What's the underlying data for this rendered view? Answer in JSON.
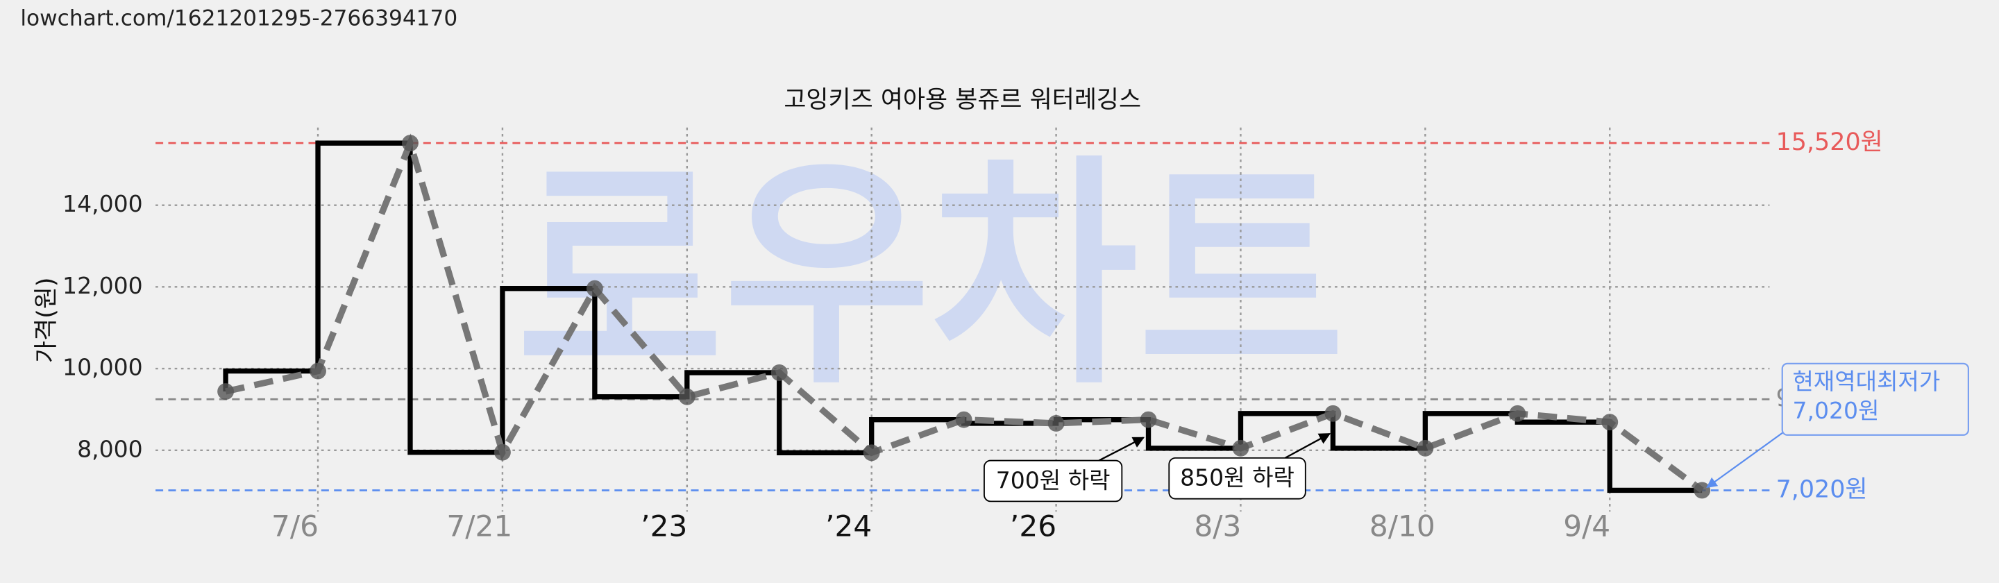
{
  "url": "lowchart.com/1621201295-2766394170",
  "chart_data": {
    "type": "line",
    "title": "고잉키즈 여아용 봉쥬르 워터레깅스",
    "ylabel": "가격(원)",
    "watermark": "로우차트",
    "categories": [
      null,
      "7/6",
      null,
      "7/21",
      null,
      "’23",
      null,
      "’24",
      null,
      "’26",
      null,
      "8/3",
      null,
      "8/10",
      null,
      "9/4",
      null
    ],
    "values": [
      9440,
      9940,
      15520,
      7950,
      11960,
      9310,
      9900,
      7940,
      8750,
      8660,
      8750,
      8050,
      8900,
      8050,
      8900,
      8690,
      7020
    ],
    "line_color": "#777777",
    "step_color": "#000000",
    "ylim": [
      6500,
      15900
    ],
    "yticks": [
      {
        "value": 8000,
        "label": "8,000"
      },
      {
        "value": 10000,
        "label": "10,000"
      },
      {
        "value": 12000,
        "label": "12,000"
      },
      {
        "value": 14000,
        "label": "14,000"
      }
    ],
    "grid": true,
    "reference_lines": [
      {
        "value": 15520,
        "label": "15,520원",
        "color": "#e85a5a"
      },
      {
        "value": 9250,
        "label": "9",
        "color": "#888888"
      },
      {
        "value": 7020,
        "label": "7,020원",
        "color": "#5b8def"
      }
    ],
    "annotations": [
      "700원 하락",
      "850원 하락"
    ],
    "callout": [
      "현재역대최저가",
      "7,020원"
    ]
  }
}
